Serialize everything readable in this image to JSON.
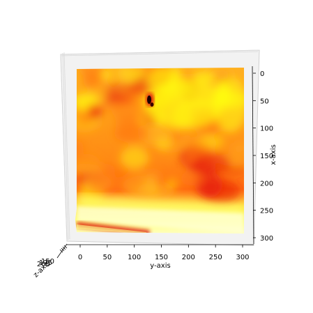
{
  "chart_data": {
    "type": "heatmap",
    "title": "",
    "xlabel": "x-axis",
    "ylabel": "y-axis",
    "zlabel": "z-axis",
    "x_ticks": [
      0,
      50,
      100,
      150,
      200,
      250,
      300
    ],
    "y_ticks": [
      0,
      50,
      100,
      150,
      200,
      250,
      300
    ],
    "z_ticks": [
      150,
      175,
      200
    ],
    "x_range": [
      0,
      310
    ],
    "y_range": [
      0,
      305
    ],
    "colormap": "hot",
    "colors": {
      "dark": "#1a0000",
      "red": "#e8200a",
      "orange": "#ff7a10",
      "amber": "#ffae20",
      "yellow": "#ffff10",
      "pale": "#ffffc8",
      "pane": "#f2f2f2",
      "pane_edge": "#c8c8c8"
    },
    "hotspot": {
      "x": 55,
      "y": 130
    }
  }
}
